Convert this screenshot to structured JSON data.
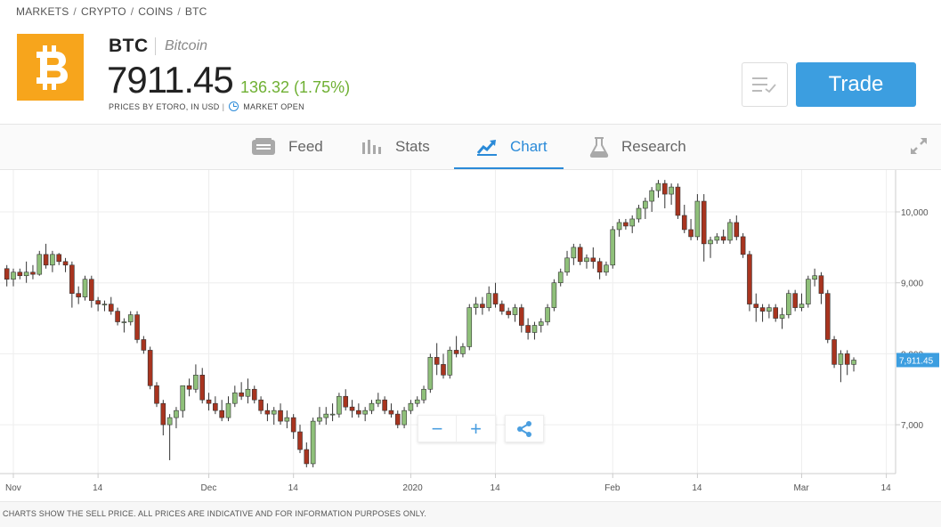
{
  "breadcrumb": [
    "MARKETS",
    "CRYPTO",
    "COINS",
    "BTC"
  ],
  "instrument": {
    "symbol": "BTC",
    "name": "Bitcoin",
    "price": "7911.45",
    "change": "136.32 (1.75%)",
    "price_source": "PRICES BY ETORO, IN USD",
    "market_status": "MARKET OPEN",
    "logo_icon": "bitcoin-logo-icon",
    "logo_color": "#f7a51c",
    "change_color": "#6fb033"
  },
  "actions": {
    "trade_label": "Trade",
    "watchlist_icon": "watchlist-icon"
  },
  "tabs": [
    {
      "label": "Feed",
      "icon": "feed-icon",
      "active": false
    },
    {
      "label": "Stats",
      "icon": "stats-icon",
      "active": false
    },
    {
      "label": "Chart",
      "icon": "chart-icon",
      "active": true
    },
    {
      "label": "Research",
      "icon": "flask-icon",
      "active": false
    }
  ],
  "chart_controls": {
    "zoom_out": "−",
    "zoom_in": "+",
    "share_icon": "share-icon"
  },
  "chart_data": {
    "type": "candlestick",
    "title": "",
    "y_ticks": [
      "10,000",
      "9,000",
      "8,000",
      "7,000"
    ],
    "y_tick_values": [
      10000,
      9000,
      8000,
      7000
    ],
    "ylim": [
      6300,
      10500
    ],
    "x_ticks": [
      {
        "label": "Nov",
        "day": 0
      },
      {
        "label": "14",
        "day": 13
      },
      {
        "label": "Dec",
        "day": 30
      },
      {
        "label": "14",
        "day": 43
      },
      {
        "label": "2020",
        "day": 61
      },
      {
        "label": "14",
        "day": 74
      },
      {
        "label": "Feb",
        "day": 92
      },
      {
        "label": "14",
        "day": 105
      },
      {
        "label": "Mar",
        "day": 121
      },
      {
        "label": "14",
        "day": 134
      }
    ],
    "last_price_label": "7,911.45",
    "last_price": 7911.45,
    "up_color": "#8fc07a",
    "down_color": "#a8341f",
    "grid": true,
    "candles_ohlc_start_day": -1,
    "candles": [
      [
        9200,
        9250,
        8950,
        9050
      ],
      [
        9050,
        9200,
        8950,
        9150
      ],
      [
        9150,
        9200,
        9050,
        9100
      ],
      [
        9100,
        9300,
        9000,
        9150
      ],
      [
        9150,
        9250,
        9050,
        9120
      ],
      [
        9120,
        9450,
        9100,
        9400
      ],
      [
        9400,
        9550,
        9200,
        9250
      ],
      [
        9250,
        9450,
        9150,
        9400
      ],
      [
        9400,
        9420,
        9250,
        9300
      ],
      [
        9300,
        9350,
        9150,
        9250
      ],
      [
        9250,
        9300,
        8650,
        8850
      ],
      [
        8850,
        8950,
        8700,
        8800
      ],
      [
        8800,
        9100,
        8750,
        9050
      ],
      [
        9050,
        9100,
        8650,
        8750
      ],
      [
        8750,
        8800,
        8600,
        8700
      ],
      [
        8700,
        8750,
        8600,
        8700
      ],
      [
        8700,
        8800,
        8550,
        8600
      ],
      [
        8600,
        8650,
        8400,
        8450
      ],
      [
        8450,
        8500,
        8300,
        8450
      ],
      [
        8450,
        8600,
        8400,
        8550
      ],
      [
        8550,
        8600,
        8150,
        8200
      ],
      [
        8200,
        8250,
        8000,
        8050
      ],
      [
        8050,
        8100,
        7500,
        7550
      ],
      [
        7550,
        7600,
        7250,
        7300
      ],
      [
        7300,
        7350,
        6850,
        7000
      ],
      [
        7000,
        7150,
        6500,
        7100
      ],
      [
        7100,
        7250,
        6950,
        7200
      ],
      [
        7200,
        7550,
        7100,
        7550
      ],
      [
        7550,
        7650,
        7400,
        7500
      ],
      [
        7500,
        7850,
        7450,
        7700
      ],
      [
        7700,
        7800,
        7300,
        7350
      ],
      [
        7350,
        7450,
        7200,
        7300
      ],
      [
        7300,
        7400,
        7150,
        7200
      ],
      [
        7200,
        7350,
        7050,
        7100
      ],
      [
        7100,
        7400,
        7050,
        7300
      ],
      [
        7300,
        7550,
        7250,
        7450
      ],
      [
        7450,
        7600,
        7350,
        7400
      ],
      [
        7400,
        7650,
        7300,
        7500
      ],
      [
        7500,
        7550,
        7300,
        7350
      ],
      [
        7350,
        7400,
        7150,
        7200
      ],
      [
        7200,
        7300,
        7050,
        7150
      ],
      [
        7150,
        7250,
        7000,
        7200
      ],
      [
        7200,
        7300,
        7000,
        7050
      ],
      [
        7050,
        7200,
        6950,
        7100
      ],
      [
        7100,
        7150,
        6800,
        6900
      ],
      [
        6900,
        7000,
        6600,
        6650
      ],
      [
        6650,
        6750,
        6400,
        6450
      ],
      [
        6450,
        7100,
        6400,
        7050
      ],
      [
        7050,
        7250,
        7000,
        7100
      ],
      [
        7100,
        7250,
        7000,
        7150
      ],
      [
        7150,
        7300,
        7050,
        7150
      ],
      [
        7150,
        7450,
        7100,
        7400
      ],
      [
        7400,
        7500,
        7200,
        7250
      ],
      [
        7250,
        7350,
        7100,
        7200
      ],
      [
        7200,
        7300,
        7100,
        7150
      ],
      [
        7150,
        7250,
        7050,
        7200
      ],
      [
        7200,
        7350,
        7150,
        7300
      ],
      [
        7300,
        7450,
        7250,
        7350
      ],
      [
        7350,
        7400,
        7150,
        7200
      ],
      [
        7200,
        7300,
        7100,
        7150
      ],
      [
        7150,
        7200,
        6950,
        7000
      ],
      [
        7000,
        7250,
        6950,
        7200
      ],
      [
        7200,
        7350,
        7150,
        7300
      ],
      [
        7300,
        7400,
        7250,
        7350
      ],
      [
        7350,
        7550,
        7300,
        7500
      ],
      [
        7500,
        8000,
        7450,
        7950
      ],
      [
        7950,
        8150,
        7700,
        7850
      ],
      [
        7850,
        8000,
        7650,
        7700
      ],
      [
        7700,
        8100,
        7650,
        8050
      ],
      [
        8050,
        8250,
        7950,
        8000
      ],
      [
        8000,
        8150,
        7950,
        8100
      ],
      [
        8100,
        8700,
        8050,
        8650
      ],
      [
        8650,
        8800,
        8550,
        8700
      ],
      [
        8700,
        8800,
        8550,
        8650
      ],
      [
        8650,
        8950,
        8600,
        8850
      ],
      [
        8850,
        9000,
        8650,
        8700
      ],
      [
        8700,
        8750,
        8550,
        8600
      ],
      [
        8600,
        8650,
        8500,
        8550
      ],
      [
        8550,
        8700,
        8450,
        8650
      ],
      [
        8650,
        8700,
        8300,
        8400
      ],
      [
        8400,
        8500,
        8200,
        8300
      ],
      [
        8300,
        8450,
        8200,
        8400
      ],
      [
        8400,
        8500,
        8300,
        8450
      ],
      [
        8450,
        8700,
        8400,
        8650
      ],
      [
        8650,
        9050,
        8600,
        9000
      ],
      [
        9000,
        9200,
        8950,
        9150
      ],
      [
        9150,
        9450,
        9100,
        9350
      ],
      [
        9350,
        9550,
        9250,
        9500
      ],
      [
        9500,
        9550,
        9250,
        9300
      ],
      [
        9300,
        9400,
        9200,
        9350
      ],
      [
        9350,
        9500,
        9200,
        9300
      ],
      [
        9300,
        9350,
        9050,
        9150
      ],
      [
        9150,
        9300,
        9100,
        9250
      ],
      [
        9250,
        9800,
        9200,
        9750
      ],
      [
        9750,
        9900,
        9650,
        9850
      ],
      [
        9850,
        9900,
        9750,
        9800
      ],
      [
        9800,
        9950,
        9700,
        9900
      ],
      [
        9900,
        10100,
        9850,
        10050
      ],
      [
        10050,
        10200,
        9900,
        10150
      ],
      [
        10150,
        10350,
        10000,
        10300
      ],
      [
        10300,
        10450,
        10200,
        10400
      ],
      [
        10400,
        10450,
        10050,
        10250
      ],
      [
        10250,
        10400,
        10100,
        10350
      ],
      [
        10350,
        10400,
        9900,
        9950
      ],
      [
        9950,
        10100,
        9700,
        9750
      ],
      [
        9750,
        9900,
        9600,
        9650
      ],
      [
        9650,
        10250,
        9600,
        10150
      ],
      [
        10150,
        10250,
        9300,
        9550
      ],
      [
        9550,
        9650,
        9350,
        9600
      ],
      [
        9600,
        9700,
        9550,
        9650
      ],
      [
        9650,
        9750,
        9550,
        9600
      ],
      [
        9600,
        9900,
        9550,
        9850
      ],
      [
        9850,
        9950,
        9600,
        9650
      ],
      [
        9650,
        9700,
        9350,
        9400
      ],
      [
        9400,
        9450,
        8600,
        8700
      ],
      [
        8700,
        8850,
        8450,
        8650
      ],
      [
        8650,
        8700,
        8450,
        8600
      ],
      [
        8600,
        8700,
        8500,
        8650
      ],
      [
        8650,
        8700,
        8450,
        8500
      ],
      [
        8500,
        8650,
        8350,
        8550
      ],
      [
        8550,
        8900,
        8500,
        8850
      ],
      [
        8850,
        8900,
        8600,
        8650
      ],
      [
        8650,
        8850,
        8600,
        8700
      ],
      [
        8700,
        9100,
        8650,
        9050
      ],
      [
        9050,
        9200,
        8950,
        9100
      ],
      [
        9100,
        9150,
        8700,
        8850
      ],
      [
        8850,
        8900,
        8150,
        8200
      ],
      [
        8200,
        8250,
        7800,
        7850
      ],
      [
        7850,
        8050,
        7600,
        8000
      ],
      [
        8000,
        8050,
        7700,
        7850
      ],
      [
        7850,
        7950,
        7750,
        7911
      ]
    ]
  },
  "disclaimer": "CHARTS SHOW THE SELL PRICE. ALL PRICES ARE INDICATIVE AND FOR INFORMATION PURPOSES ONLY."
}
